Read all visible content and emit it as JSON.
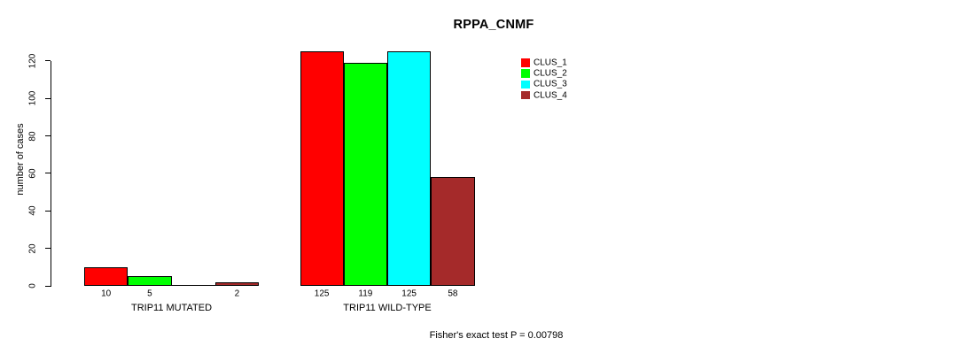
{
  "title": "RPPA_CNMF",
  "chart_data": {
    "type": "bar",
    "title": "RPPA_CNMF",
    "ylabel": "number of cases",
    "xlabel": "",
    "ylim": [
      0,
      120
    ],
    "yticks": [
      0,
      20,
      40,
      60,
      80,
      100,
      120
    ],
    "grid": false,
    "background": "#ffffff",
    "colors": [
      "#ff0000",
      "#00ff00",
      "#00ffff",
      "#a52a2a"
    ],
    "legend": {
      "position": "top-right",
      "entries": [
        "CLUS_1",
        "CLUS_2",
        "CLUS_3",
        "CLUS_4"
      ]
    },
    "groups": [
      {
        "label": "TRIP11 MUTATED",
        "values": [
          10,
          5,
          0,
          2
        ],
        "bar_labels": [
          "10",
          "5",
          "",
          "2"
        ]
      },
      {
        "label": "TRIP11 WILD-TYPE",
        "values": [
          125,
          119,
          125,
          58
        ],
        "bar_labels": [
          "125",
          "119",
          "125",
          "58"
        ]
      }
    ],
    "annotation": "Fisher's exact test P = 0.00798"
  }
}
